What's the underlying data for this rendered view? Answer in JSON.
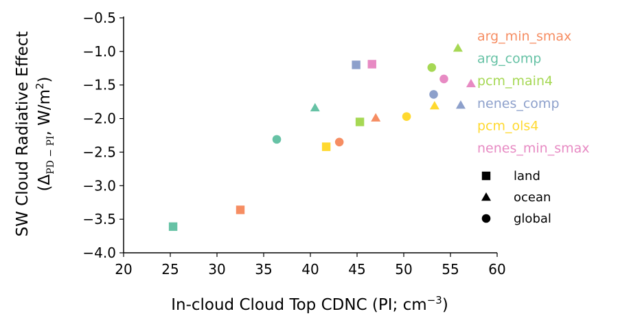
{
  "chart_data": {
    "type": "scatter",
    "xlabel": "In-cloud Cloud Top CDNC (PI; cm",
    "xlabel_sup": "−3",
    "xlabel_end": ")",
    "ylabel_line1": "SW Cloud Radiative Effect",
    "ylabel_line2_open": "(Δ",
    "ylabel_line2_sub": "PD − PI",
    "ylabel_line2_mid": ", W/m",
    "ylabel_line2_sup": "2",
    "ylabel_line2_close": ")",
    "xlim": [
      20,
      60
    ],
    "ylim": [
      -4.0,
      -0.5
    ],
    "xticks": [
      20,
      25,
      30,
      35,
      40,
      45,
      50,
      55,
      60
    ],
    "yticks": [
      -0.5,
      -1.0,
      -1.5,
      -2.0,
      -2.5,
      -3.0,
      -3.5,
      -4.0
    ],
    "xtick_labels": [
      "20",
      "25",
      "30",
      "35",
      "40",
      "45",
      "50",
      "55",
      "60"
    ],
    "ytick_labels": [
      "−0.5",
      "−1.0",
      "−1.5",
      "−2.0",
      "−2.5",
      "−3.0",
      "−3.5",
      "−4.0"
    ],
    "legend_placement": "right",
    "series": [
      {
        "name": "arg_min_smax",
        "color": "#f68d62",
        "points": [
          {
            "x": 32.5,
            "y": -3.36,
            "marker": "land"
          },
          {
            "x": 47.0,
            "y": -1.99,
            "marker": "ocean"
          },
          {
            "x": 43.1,
            "y": -2.35,
            "marker": "global"
          }
        ]
      },
      {
        "name": "arg_comp",
        "color": "#66c2a5",
        "points": [
          {
            "x": 25.3,
            "y": -3.61,
            "marker": "land"
          },
          {
            "x": 40.5,
            "y": -1.84,
            "marker": "ocean"
          },
          {
            "x": 36.4,
            "y": -2.31,
            "marker": "global"
          }
        ]
      },
      {
        "name": "pcm_main4",
        "color": "#a6d854",
        "points": [
          {
            "x": 45.3,
            "y": -2.05,
            "marker": "land"
          },
          {
            "x": 55.8,
            "y": -0.95,
            "marker": "ocean"
          },
          {
            "x": 53.0,
            "y": -1.24,
            "marker": "global"
          }
        ]
      },
      {
        "name": "nenes_comp",
        "color": "#8da0cb",
        "points": [
          {
            "x": 44.9,
            "y": -1.2,
            "marker": "land"
          },
          {
            "x": 56.1,
            "y": -1.8,
            "marker": "ocean"
          },
          {
            "x": 53.2,
            "y": -1.64,
            "marker": "global"
          }
        ]
      },
      {
        "name": "pcm_ols4",
        "color": "#ffd92f",
        "points": [
          {
            "x": 41.7,
            "y": -2.42,
            "marker": "land"
          },
          {
            "x": 53.3,
            "y": -1.81,
            "marker": "ocean"
          },
          {
            "x": 50.3,
            "y": -1.97,
            "marker": "global"
          }
        ]
      },
      {
        "name": "nenes_min_smax",
        "color": "#e78ac3",
        "points": [
          {
            "x": 46.6,
            "y": -1.19,
            "marker": "land"
          },
          {
            "x": 57.2,
            "y": -1.48,
            "marker": "ocean"
          },
          {
            "x": 54.3,
            "y": -1.41,
            "marker": "global"
          }
        ]
      }
    ],
    "marker_legend": [
      {
        "key": "land",
        "label": "land",
        "shape": "square"
      },
      {
        "key": "ocean",
        "label": "ocean",
        "shape": "triangle"
      },
      {
        "key": "global",
        "label": "global",
        "shape": "circle"
      }
    ]
  }
}
